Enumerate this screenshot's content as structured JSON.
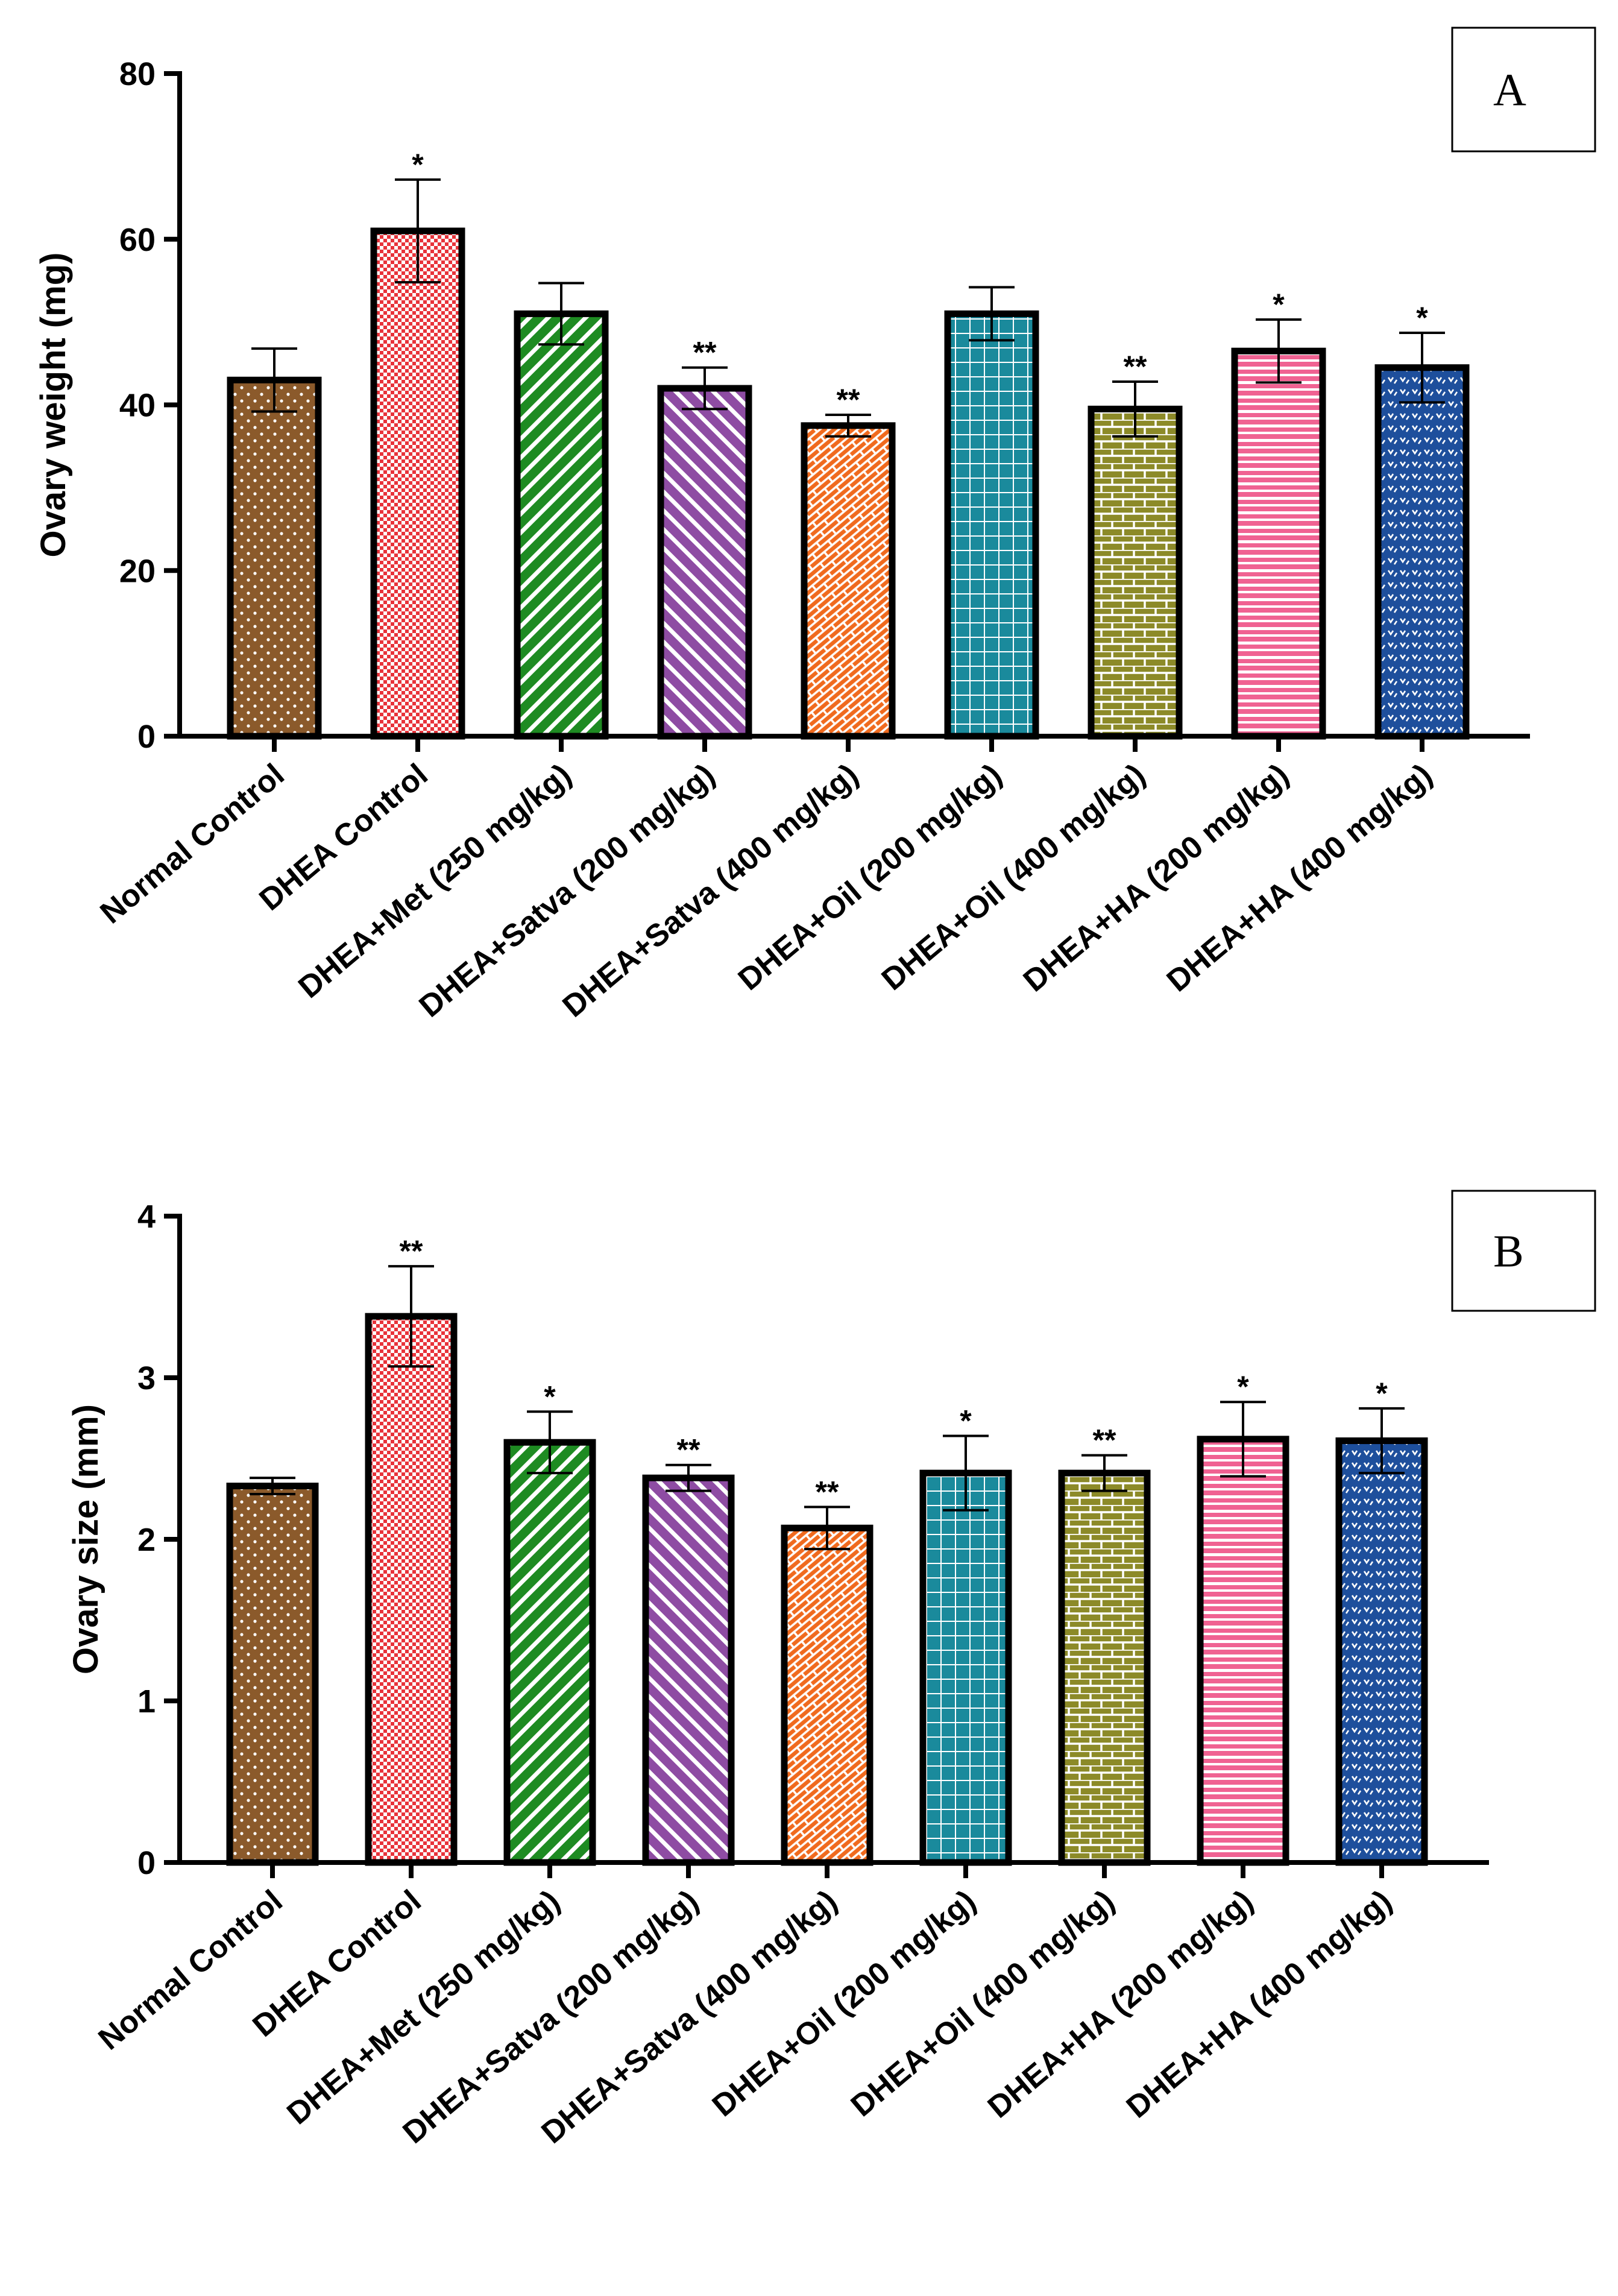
{
  "colors": {
    "normal_control": "#8B5A2B",
    "dhea_control": "#E8333A",
    "met": "#1E8B22",
    "satva200": "#8E4CA3",
    "satva400": "#F06A1E",
    "oil200": "#1A8A9C",
    "oil400": "#8C8A28",
    "ha200": "#F06292",
    "ha400": "#1E4F9C"
  },
  "chart_data": [
    {
      "type": "bar",
      "panel_label": "A",
      "ylabel": "Ovary weight (mg)",
      "ylim": [
        0,
        80
      ],
      "yticks": [
        "0",
        "20",
        "40",
        "60",
        "80"
      ],
      "categories": [
        "Normal Control",
        "DHEA Control",
        "DHEA+Met (250 mg/kg)",
        "DHEA+Satva (200 mg/kg)",
        "DHEA+Satva (400 mg/kg)",
        "DHEA+Oil (200 mg/kg)",
        "DHEA+Oil (400 mg/kg)",
        "DHEA+HA (200 mg/kg)",
        "DHEA+HA (400 mg/kg)"
      ],
      "values": [
        43,
        61,
        51,
        42,
        37.5,
        51,
        39.5,
        46.5,
        44.5
      ],
      "errors": [
        3.8,
        6.2,
        3.7,
        2.5,
        1.3,
        3.2,
        3.3,
        3.8,
        4.2
      ],
      "significance": [
        "",
        "*",
        "",
        "**",
        "**",
        "",
        "**",
        "*",
        "*"
      ]
    },
    {
      "type": "bar",
      "panel_label": "B",
      "ylabel": "Ovary size (mm)",
      "ylim": [
        0,
        4
      ],
      "yticks": [
        "0",
        "1",
        "2",
        "3",
        "4"
      ],
      "categories": [
        "Normal Control",
        "DHEA Control",
        "DHEA+Met (250 mg/kg)",
        "DHEA+Satva (200 mg/kg)",
        "DHEA+Satva (400 mg/kg)",
        "DHEA+Oil (200 mg/kg)",
        "DHEA+Oil (400 mg/kg)",
        "DHEA+HA (200 mg/kg)",
        "DHEA+HA (400 mg/kg)"
      ],
      "values": [
        2.33,
        3.38,
        2.6,
        2.38,
        2.07,
        2.41,
        2.41,
        2.62,
        2.61
      ],
      "errors": [
        0.05,
        0.31,
        0.19,
        0.08,
        0.13,
        0.23,
        0.11,
        0.23,
        0.2
      ],
      "significance": [
        "",
        "**",
        "*",
        "**",
        "**",
        "*",
        "**",
        "*",
        "*"
      ]
    }
  ]
}
